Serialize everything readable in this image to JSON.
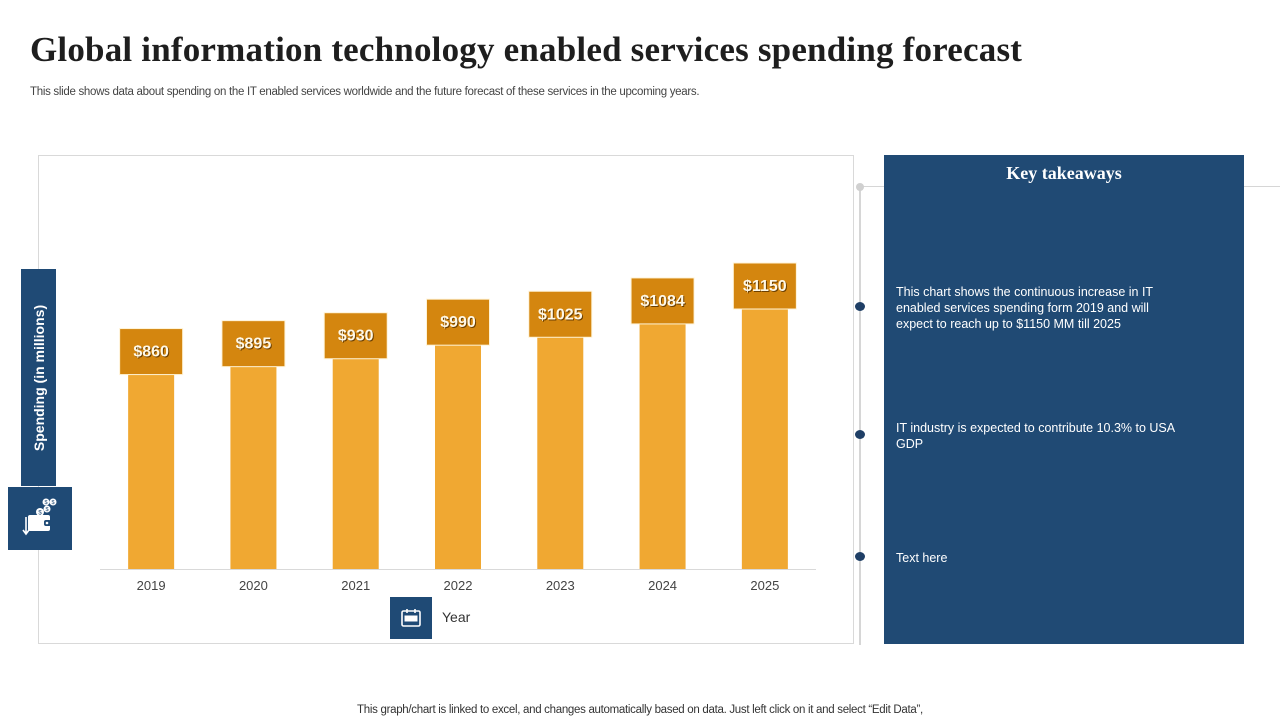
{
  "title": "Global information technology enabled services spending forecast",
  "subtitle": "This slide shows data about spending on the IT  enabled services worldwide and the future forecast of these services in the upcoming years.",
  "footer": "This graph/chart is linked to excel,  and changes automatically based on data. Just left click on it and select “Edit Data”,",
  "colors": {
    "bar": "#f0a832",
    "label_box": "#d4860f",
    "navy": "#1f4a75",
    "baseline": "#d9d9d9"
  },
  "icons": {
    "y_axis_icon": "wallet-money-icon",
    "x_axis_icon": "calendar-icon"
  },
  "panel": {
    "title": "Key takeaways",
    "items": [
      "This chart shows the continuous increase in IT enabled services spending form 2019 and will expect to reach up to $1150  MM till 2025",
      "IT industry is expected to contribute  10.3% to USA GDP",
      "Text here"
    ]
  },
  "chart_data": {
    "type": "bar",
    "title": "",
    "xlabel": "Year",
    "ylabel": "Spending (in millions)",
    "categories": [
      "2019",
      "2020",
      "2021",
      "2022",
      "2023",
      "2024",
      "2025"
    ],
    "values": [
      860,
      895,
      930,
      990,
      1025,
      1084,
      1150
    ],
    "data_labels": [
      "$860",
      "$895",
      "$930",
      "$990",
      "$1025",
      "$1084",
      "$1150"
    ],
    "ylim": [
      0,
      1150
    ],
    "grid": false,
    "legend": "none"
  }
}
